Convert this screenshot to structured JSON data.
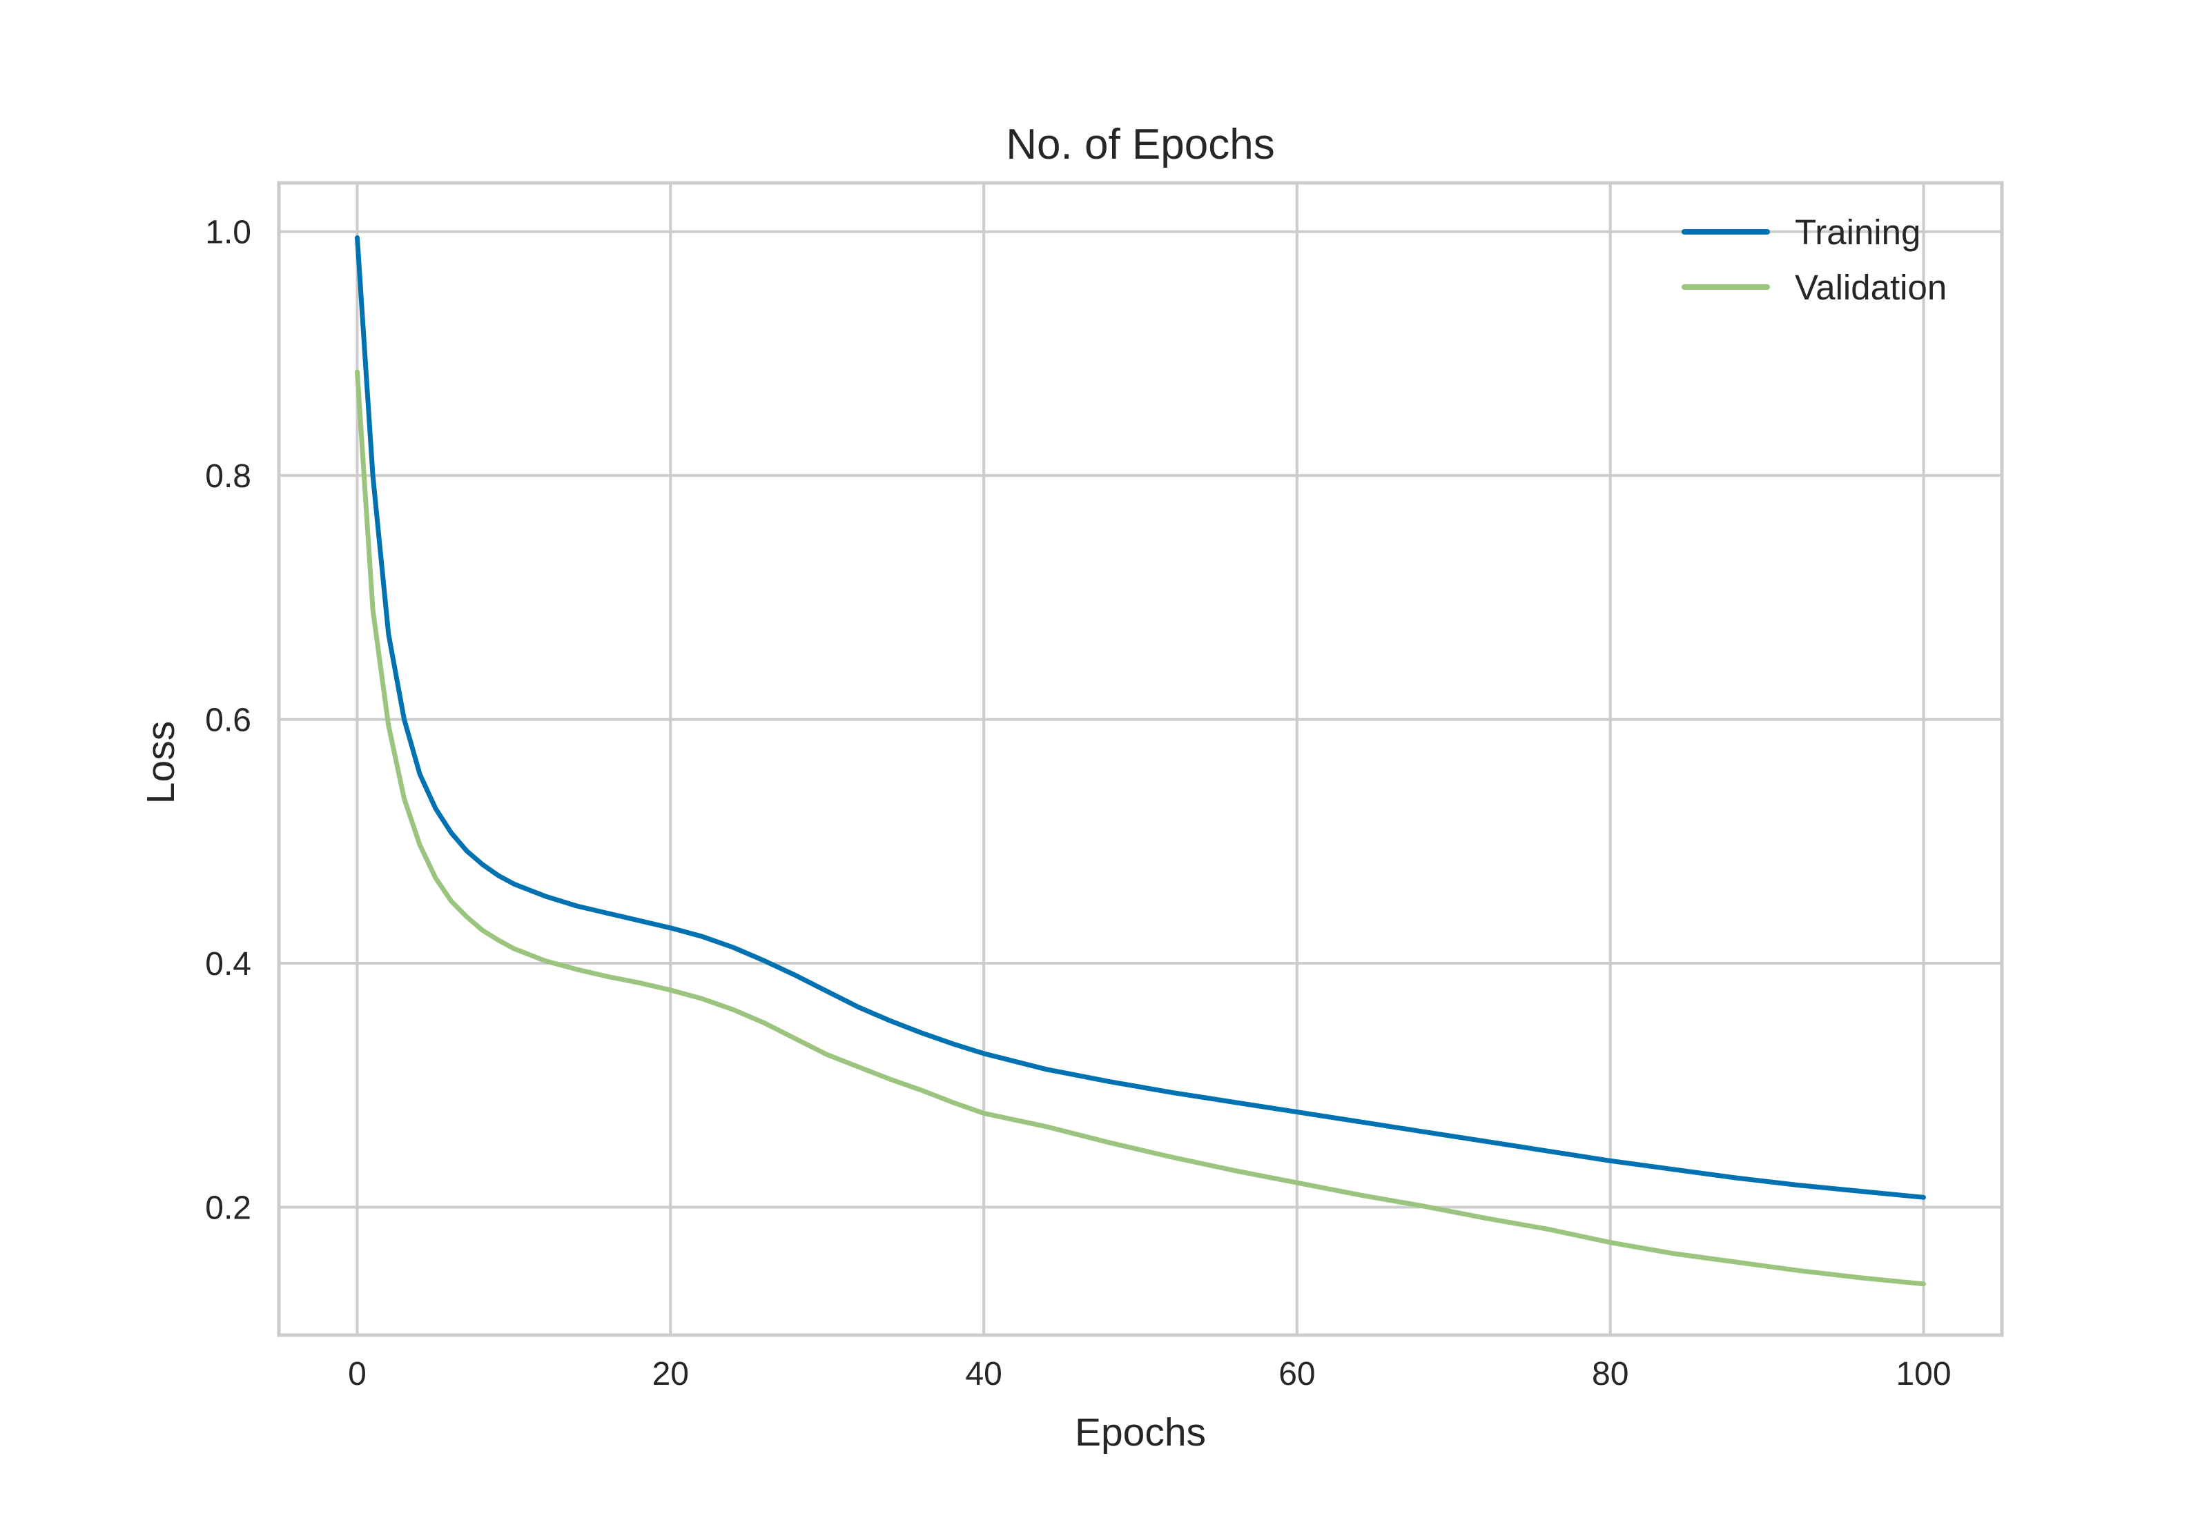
{
  "chart_data": {
    "type": "line",
    "title": "No. of Epochs",
    "xlabel": "Epochs",
    "ylabel": "Loss",
    "xlim": [
      -5,
      105
    ],
    "ylim": [
      0.095,
      1.04
    ],
    "xticks": [
      "0",
      "20",
      "40",
      "60",
      "80",
      "100"
    ],
    "yticks": [
      "0.2",
      "0.4",
      "0.6",
      "0.8",
      "1.0"
    ],
    "grid": true,
    "legend_position": "top-right",
    "x": [
      0,
      1,
      2,
      3,
      4,
      5,
      6,
      7,
      8,
      9,
      10,
      12,
      14,
      16,
      18,
      20,
      22,
      24,
      26,
      28,
      30,
      32,
      34,
      36,
      38,
      40,
      44,
      48,
      52,
      56,
      60,
      64,
      68,
      72,
      76,
      80,
      84,
      88,
      92,
      96,
      100
    ],
    "series": [
      {
        "name": "Training",
        "color": "#0072b2",
        "values": [
          0.995,
          0.8,
          0.67,
          0.6,
          0.555,
          0.527,
          0.507,
          0.492,
          0.481,
          0.472,
          0.465,
          0.455,
          0.447,
          0.441,
          0.435,
          0.429,
          0.422,
          0.413,
          0.402,
          0.39,
          0.377,
          0.364,
          0.353,
          0.343,
          0.334,
          0.326,
          0.313,
          0.303,
          0.294,
          0.286,
          0.278,
          0.27,
          0.262,
          0.254,
          0.246,
          0.238,
          0.231,
          0.224,
          0.218,
          0.213,
          0.208
        ]
      },
      {
        "name": "Validation",
        "color": "#9bc47e",
        "values": [
          0.885,
          0.69,
          0.595,
          0.535,
          0.497,
          0.47,
          0.451,
          0.438,
          0.427,
          0.419,
          0.412,
          0.402,
          0.395,
          0.389,
          0.384,
          0.378,
          0.371,
          0.362,
          0.351,
          0.338,
          0.325,
          0.315,
          0.305,
          0.296,
          0.286,
          0.277,
          0.266,
          0.253,
          0.241,
          0.23,
          0.22,
          0.21,
          0.201,
          0.191,
          0.182,
          0.171,
          0.162,
          0.155,
          0.148,
          0.142,
          0.137
        ]
      }
    ]
  }
}
